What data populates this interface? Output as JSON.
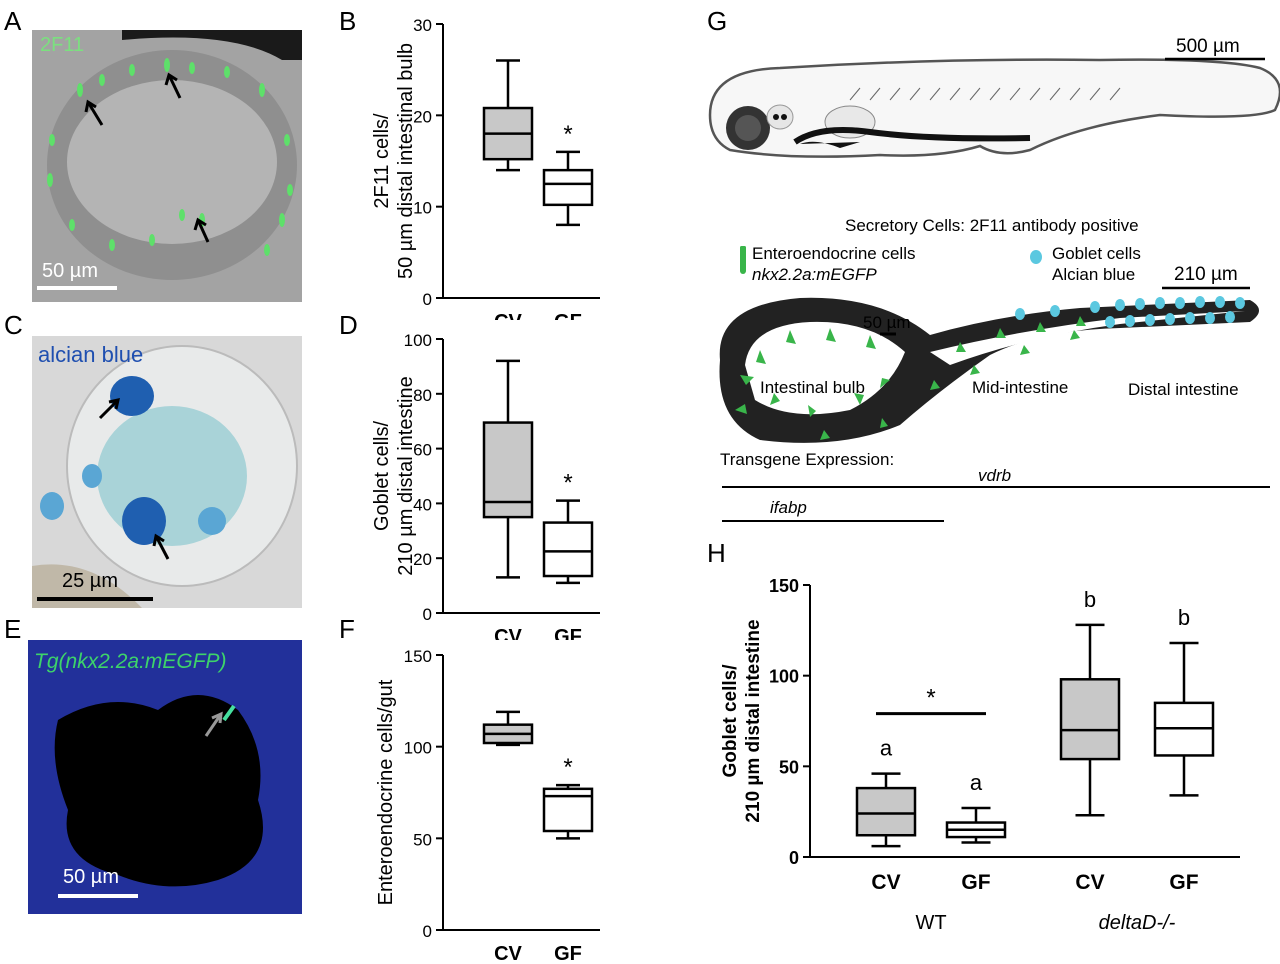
{
  "panels": {
    "A": {
      "letter": "A",
      "stain": "2F11",
      "scale": "50 µm"
    },
    "C": {
      "letter": "C",
      "stain": "alcian blue",
      "scale": "25 µm"
    },
    "E": {
      "letter": "E",
      "stain": "Tg(nkx2.2a:mEGFP)",
      "scale": "50 µm"
    },
    "G": {
      "letter": "G",
      "scale_fish": "500 µm",
      "caption": "Secretory Cells: 2F11 antibody positive",
      "legend_ee_1": "Enteroendocrine cells",
      "legend_ee_2": "nkx2.2a:mEGFP",
      "legend_gob_1": "Goblet cells",
      "legend_gob_2": "Alcian blue",
      "scale_gut": "210 µm",
      "scale_small": "50 µm",
      "region_bulb": "Intestinal bulb",
      "region_mid": "Mid-intestine",
      "region_distal": "Distal intestine",
      "transgene_title": "Transgene Expression:",
      "transgene_1": "vdrb",
      "transgene_2": "ifabp"
    }
  },
  "colors": {
    "cv_fill": "#c8c8c8",
    "gf_fill": "#ffffff",
    "goblet": "#5bc8e0",
    "egfp": "#39b54a",
    "alcian": "#1f5fb0"
  },
  "chart_data": [
    {
      "id": "B",
      "type": "box",
      "letter": "B",
      "ylabel_1": "2F11 cells/",
      "ylabel_2": "50 µm distal intestinal bulb",
      "categories": [
        "CV",
        "GF"
      ],
      "yticks": [
        "0",
        "10",
        "20",
        "30"
      ],
      "ylim": [
        0,
        30
      ],
      "boxes": [
        {
          "min": 14,
          "q1": 15.2,
          "median": 18,
          "q3": 20.8,
          "max": 26
        },
        {
          "min": 8,
          "q1": 10.2,
          "median": 12.5,
          "q3": 14,
          "max": 16
        }
      ],
      "annotations": [
        {
          "text": "*",
          "over": 1
        }
      ]
    },
    {
      "id": "D",
      "type": "box",
      "letter": "D",
      "ylabel_1": "Goblet cells/",
      "ylabel_2": "210 µm distal intestine",
      "categories": [
        "CV",
        "GF"
      ],
      "yticks": [
        "0",
        "20",
        "40",
        "60",
        "80",
        "100"
      ],
      "ylim": [
        0,
        100
      ],
      "boxes": [
        {
          "min": 13,
          "q1": 35,
          "median": 40.5,
          "q3": 69.5,
          "max": 92
        },
        {
          "min": 11,
          "q1": 13.5,
          "median": 22.5,
          "q3": 33,
          "max": 41
        }
      ],
      "annotations": [
        {
          "text": "*",
          "over": 1
        }
      ]
    },
    {
      "id": "F",
      "type": "box",
      "letter": "F",
      "ylabel_1": "Enteroendocrine cells/gut",
      "ylabel_2": "",
      "categories": [
        "CV",
        "GF"
      ],
      "yticks": [
        "0",
        "50",
        "100",
        "150"
      ],
      "ylim": [
        0,
        150
      ],
      "boxes": [
        {
          "min": 101,
          "q1": 102,
          "median": 107,
          "q3": 112,
          "max": 119
        },
        {
          "min": 50,
          "q1": 54,
          "median": 73,
          "q3": 77,
          "max": 79
        }
      ],
      "annotations": [
        {
          "text": "*",
          "over": 1
        }
      ]
    },
    {
      "id": "H",
      "type": "box",
      "letter": "H",
      "ylabel_1": "Goblet cells/",
      "ylabel_2": "210 µm distal intestine",
      "categories": [
        "CV",
        "GF",
        "CV",
        "GF"
      ],
      "groups": [
        "WT",
        "deltaD-/-"
      ],
      "yticks": [
        "0",
        "50",
        "100",
        "150"
      ],
      "ylim": [
        0,
        150
      ],
      "boxes": [
        {
          "min": 6,
          "q1": 12,
          "median": 24,
          "q3": 38,
          "max": 46
        },
        {
          "min": 8,
          "q1": 11,
          "median": 15,
          "q3": 19,
          "max": 27
        },
        {
          "min": 23,
          "q1": 54,
          "median": 70,
          "q3": 98,
          "max": 128
        },
        {
          "min": 34,
          "q1": 56,
          "median": 71,
          "q3": 85,
          "max": 118
        }
      ],
      "letters": [
        "a",
        "a",
        "b",
        "b"
      ],
      "annotations": [
        {
          "text": "*",
          "between": [
            0,
            1
          ]
        }
      ]
    }
  ]
}
